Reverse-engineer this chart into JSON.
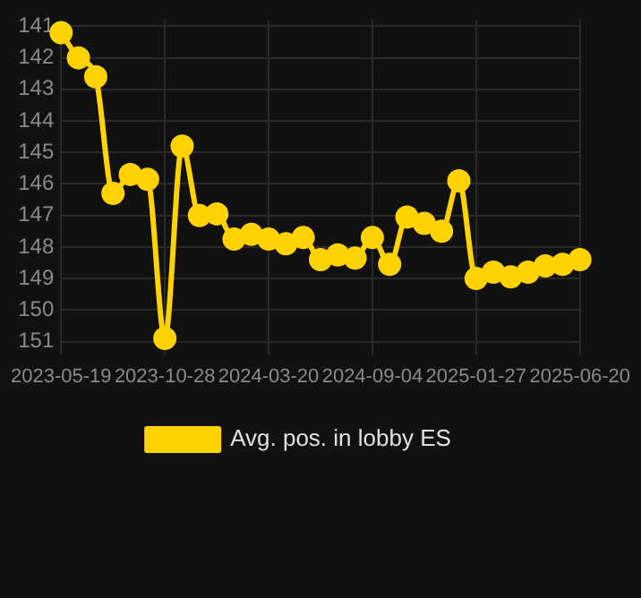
{
  "chart_data": {
    "type": "line",
    "categories": [
      "2023-05-19",
      null,
      null,
      null,
      null,
      null,
      "2023-10-28",
      null,
      null,
      null,
      null,
      null,
      "2024-03-20",
      null,
      null,
      null,
      null,
      null,
      "2024-09-04",
      null,
      null,
      null,
      null,
      null,
      "2025-01-27",
      null,
      null,
      null,
      null,
      null,
      "2025-06-20"
    ],
    "series": [
      {
        "name": "Avg. pos. in lobby ES",
        "color": "#ffd200",
        "values": [
          141.2,
          142.0,
          142.6,
          146.3,
          145.7,
          145.85,
          150.9,
          144.8,
          147.0,
          146.95,
          147.75,
          147.6,
          147.75,
          147.9,
          147.7,
          148.4,
          148.25,
          148.35,
          147.7,
          148.55,
          147.05,
          147.25,
          147.5,
          145.9,
          149.0,
          148.8,
          148.95,
          148.8,
          148.6,
          148.55,
          148.4
        ]
      }
    ],
    "ylim": [
      151.4,
      140.8
    ],
    "yticks": [
      141,
      142,
      143,
      144,
      145,
      146,
      147,
      148,
      149,
      150,
      151
    ],
    "grid": true,
    "legend": "bottom",
    "marker": "circle",
    "line_style": "solid"
  }
}
